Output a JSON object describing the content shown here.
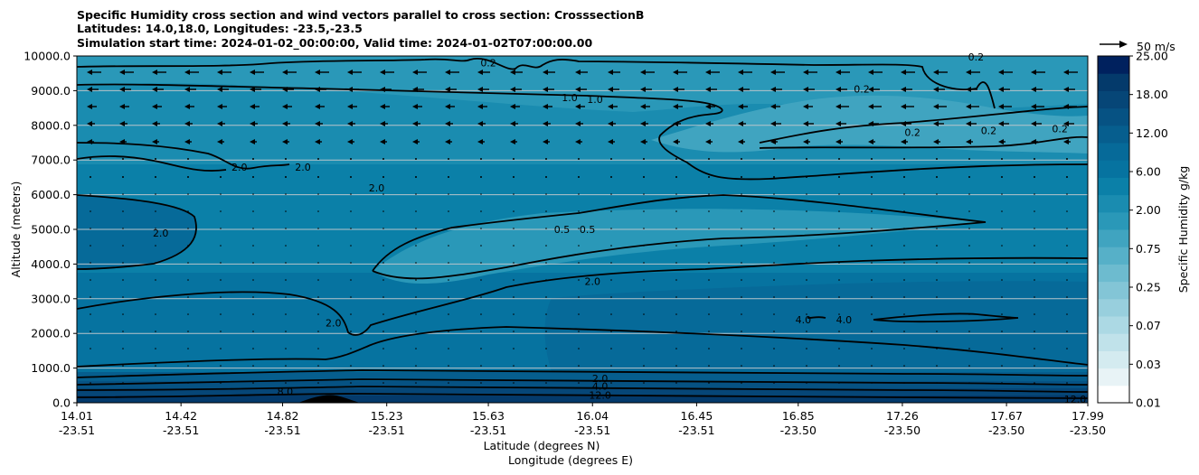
{
  "chart_data": {
    "type": "heatmap",
    "title_lines": [
      "Specific Humidity cross section and wind vectors parallel to cross section: CrosssectionB",
      "Latitudes: 14.0,18.0, Longitudes: -23.5,-23.5",
      "Simulation start time: 2024-01-02_00:00:00, Valid time: 2024-01-02T07:00:00.00"
    ],
    "xlabel_lines": [
      "Latitude (degrees N)",
      "Longitude (degrees E)"
    ],
    "ylabel": "Altitude (meters)",
    "ylim": [
      0,
      10000
    ],
    "y_ticks": [
      0,
      1000,
      2000,
      3000,
      4000,
      5000,
      6000,
      7000,
      8000,
      9000,
      10000
    ],
    "y_tick_labels": [
      "0.0",
      "1000.0",
      "2000.0",
      "3000.0",
      "4000.0",
      "5000.0",
      "6000.0",
      "7000.0",
      "8000.0",
      "9000.0",
      "10000.0"
    ],
    "x_ticks": [
      {
        "lat": "14.01",
        "lon": "-23.51"
      },
      {
        "lat": "14.42",
        "lon": "-23.51"
      },
      {
        "lat": "14.82",
        "lon": "-23.51"
      },
      {
        "lat": "15.23",
        "lon": "-23.51"
      },
      {
        "lat": "15.63",
        "lon": "-23.51"
      },
      {
        "lat": "16.04",
        "lon": "-23.51"
      },
      {
        "lat": "16.45",
        "lon": "-23.51"
      },
      {
        "lat": "16.85",
        "lon": "-23.50"
      },
      {
        "lat": "17.26",
        "lon": "-23.50"
      },
      {
        "lat": "17.67",
        "lon": "-23.50"
      },
      {
        "lat": "17.99",
        "lon": "-23.50"
      }
    ],
    "colorbar": {
      "label": "Specific Humidity g/kg",
      "tick_labels": [
        "0.01",
        "0.03",
        "0.07",
        "0.25",
        "0.75",
        "2.00",
        "6.00",
        "12.00",
        "18.00",
        "25.00"
      ],
      "levels": 20,
      "colors": [
        "#ffffff",
        "#e8f3f6",
        "#d4ebf0",
        "#c0e2ea",
        "#acd9e4",
        "#98cfdd",
        "#83c5d6",
        "#6dbbcf",
        "#56b0c8",
        "#40a4c0",
        "#2a98b8",
        "#1a8cb0",
        "#0b80a8",
        "#0673a0",
        "#066a99",
        "#065e8e",
        "#065283",
        "#064677",
        "#043a6b",
        "#00215e"
      ]
    },
    "quiver_key": {
      "label": "50 m/s"
    },
    "contour_labels": [
      {
        "text": "0.2",
        "lat": 15.63,
        "alt": 9800
      },
      {
        "text": "1.0",
        "lat": 15.95,
        "alt": 8800
      },
      {
        "text": "1.0",
        "lat": 16.05,
        "alt": 8750
      },
      {
        "text": "0.2",
        "lat": 17.55,
        "alt": 9980
      },
      {
        "text": "0.2",
        "lat": 17.1,
        "alt": 9050
      },
      {
        "text": "0.2",
        "lat": 17.3,
        "alt": 7800
      },
      {
        "text": "0.2",
        "lat": 17.6,
        "alt": 7850
      },
      {
        "text": "0.2",
        "lat": 17.88,
        "alt": 7900
      },
      {
        "text": "2.0",
        "lat": 14.65,
        "alt": 6800
      },
      {
        "text": "2.0",
        "lat": 14.9,
        "alt": 6800
      },
      {
        "text": "2.0",
        "lat": 15.19,
        "alt": 6200
      },
      {
        "text": "0.5",
        "lat": 15.92,
        "alt": 5000
      },
      {
        "text": "0.5",
        "lat": 16.02,
        "alt": 5000
      },
      {
        "text": "2.0",
        "lat": 14.34,
        "alt": 4900
      },
      {
        "text": "2.0",
        "lat": 16.04,
        "alt": 3500
      },
      {
        "text": "2.0",
        "lat": 15.02,
        "alt": 2300
      },
      {
        "text": "4.0",
        "lat": 16.87,
        "alt": 2400
      },
      {
        "text": "4.0",
        "lat": 17.03,
        "alt": 2400
      },
      {
        "text": "2.0",
        "lat": 16.07,
        "alt": 700
      },
      {
        "text": "4.0",
        "lat": 16.07,
        "alt": 480
      },
      {
        "text": "8.0",
        "lat": 14.83,
        "alt": 320
      },
      {
        "text": "12.0",
        "lat": 16.07,
        "alt": 220
      },
      {
        "text": "12.0",
        "lat": 17.94,
        "alt": 100
      }
    ]
  }
}
